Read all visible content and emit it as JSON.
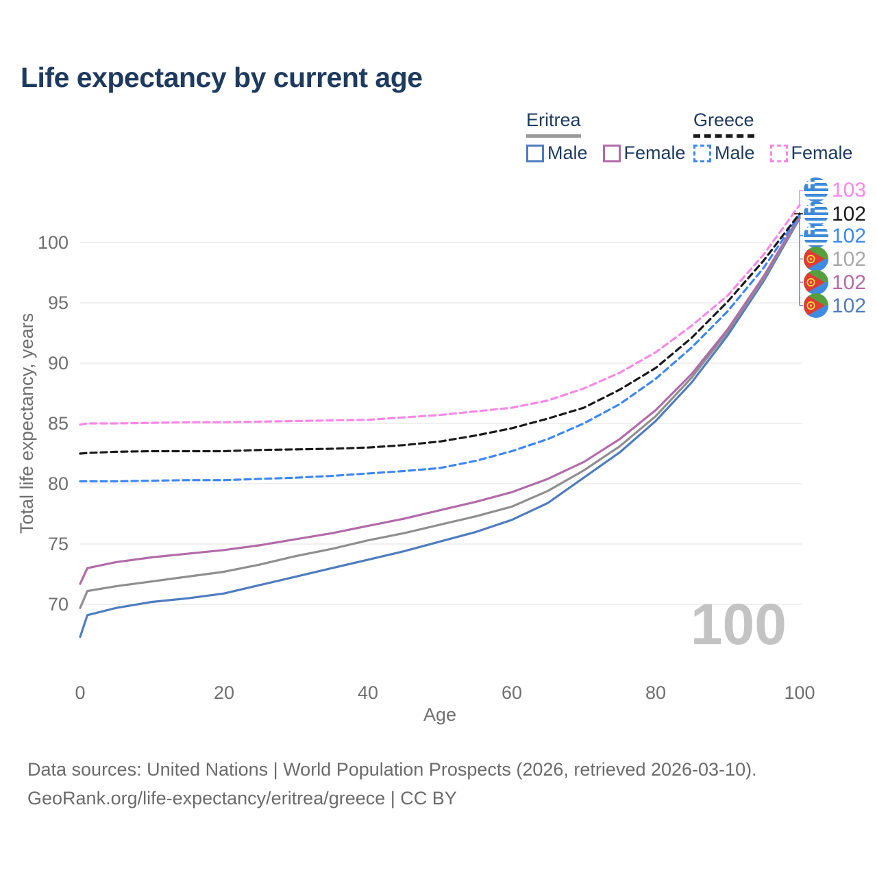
{
  "header": {
    "title": "Life expectancy by current age"
  },
  "legend": {
    "groups": [
      {
        "label": "Eritrea",
        "line_style": "solid",
        "underline_color": "#9a9a9a",
        "items": [
          {
            "label": "Male",
            "color": "#4f7cbe",
            "dashed": false
          },
          {
            "label": "Female",
            "color": "#b26ba9",
            "dashed": false
          }
        ]
      },
      {
        "label": "Greece",
        "line_style": "dashed",
        "underline_color": "#1a1a1a",
        "items": [
          {
            "label": "Male",
            "color": "#3c87f5",
            "dashed": true
          },
          {
            "label": "Female",
            "color": "#fc86e8",
            "dashed": true
          }
        ]
      }
    ]
  },
  "chart_data": {
    "type": "line",
    "title": "Life expectancy by current age",
    "xlabel": "Age",
    "ylabel": "Total life expectancy, years",
    "xticks": [
      0,
      20,
      40,
      60,
      80,
      100
    ],
    "yticks": [
      70,
      75,
      80,
      85,
      90,
      95,
      100
    ],
    "xlim": [
      0,
      100
    ],
    "ylim": [
      66.5,
      103.5
    ],
    "grid": "horizontal",
    "legend_position": "top-right",
    "watermark": "100",
    "ages": [
      0,
      1,
      5,
      10,
      15,
      20,
      25,
      30,
      35,
      40,
      45,
      50,
      55,
      60,
      65,
      70,
      75,
      80,
      85,
      90,
      95,
      100
    ],
    "series": [
      {
        "name": "Eritrea Male",
        "country": "Eritrea",
        "sex": "Male",
        "color": "#4f7cbe",
        "dash": false,
        "values": [
          67.3,
          69.1,
          69.7,
          70.2,
          70.5,
          70.9,
          71.6,
          72.3,
          73.0,
          73.7,
          74.4,
          75.2,
          76.0,
          77.0,
          78.4,
          80.5,
          82.6,
          85.2,
          88.4,
          92.3,
          96.8,
          102.0
        ]
      },
      {
        "name": "Eritrea",
        "country": "Eritrea",
        "sex": "Both",
        "color": "#8f8f8f",
        "dash": false,
        "values": [
          69.7,
          71.1,
          71.5,
          71.9,
          72.3,
          72.7,
          73.3,
          74.0,
          74.6,
          75.3,
          75.9,
          76.6,
          77.3,
          78.1,
          79.4,
          81.1,
          83.1,
          85.6,
          88.8,
          92.6,
          97.0,
          102.1
        ]
      },
      {
        "name": "Eritrea Female",
        "country": "Eritrea",
        "sex": "Female",
        "color": "#b26ba9",
        "dash": false,
        "values": [
          71.7,
          73.0,
          73.5,
          73.9,
          74.2,
          74.5,
          74.9,
          75.4,
          75.9,
          76.5,
          77.1,
          77.8,
          78.5,
          79.3,
          80.4,
          81.8,
          83.7,
          86.1,
          89.1,
          92.8,
          97.2,
          102.2
        ]
      },
      {
        "name": "Greece Male",
        "country": "Greece",
        "sex": "Male",
        "color": "#3c87f5",
        "dash": true,
        "values": [
          80.2,
          80.2,
          80.2,
          80.25,
          80.3,
          80.3,
          80.4,
          80.5,
          80.65,
          80.85,
          81.05,
          81.3,
          81.9,
          82.7,
          83.7,
          85.0,
          86.6,
          88.7,
          91.3,
          94.3,
          97.9,
          102.3
        ]
      },
      {
        "name": "Greece Female",
        "country": "Greece",
        "sex": "Female",
        "color": "#fc86e8",
        "dash": true,
        "values": [
          84.9,
          85.0,
          85.0,
          85.05,
          85.1,
          85.1,
          85.15,
          85.2,
          85.25,
          85.3,
          85.5,
          85.7,
          86.0,
          86.3,
          86.9,
          87.9,
          89.2,
          90.9,
          93.1,
          95.6,
          99.0,
          103.1
        ]
      },
      {
        "name": "Greece",
        "country": "Greece",
        "sex": "Both",
        "color": "#1a1a1a",
        "dash": true,
        "values": [
          82.5,
          82.55,
          82.65,
          82.7,
          82.7,
          82.7,
          82.8,
          82.85,
          82.9,
          83.0,
          83.2,
          83.5,
          84.0,
          84.6,
          85.4,
          86.3,
          87.8,
          89.6,
          92.1,
          95.1,
          98.5,
          102.4
        ]
      }
    ],
    "end_labels": [
      {
        "value": "103",
        "flag": "greece",
        "series": "Greece Female",
        "color": "#fc86e8"
      },
      {
        "value": "102",
        "flag": "greece",
        "series": "Greece",
        "color": "#1a1a1a"
      },
      {
        "value": "102",
        "flag": "greece",
        "series": "Greece Male",
        "color": "#3c87f5"
      },
      {
        "value": "102",
        "flag": "eritrea",
        "series": "Eritrea",
        "color": "#a8a8a8"
      },
      {
        "value": "102",
        "flag": "eritrea",
        "series": "Eritrea Female",
        "color": "#b26ba9"
      },
      {
        "value": "102",
        "flag": "eritrea",
        "series": "Eritrea Male",
        "color": "#4f7cbe"
      }
    ]
  },
  "footer": {
    "line1": "Data sources: United Nations | World Population Prospects (2026, retrieved 2026-03-10).",
    "line2": "GeoRank.org/life-expectancy/eritrea/greece | CC BY"
  }
}
